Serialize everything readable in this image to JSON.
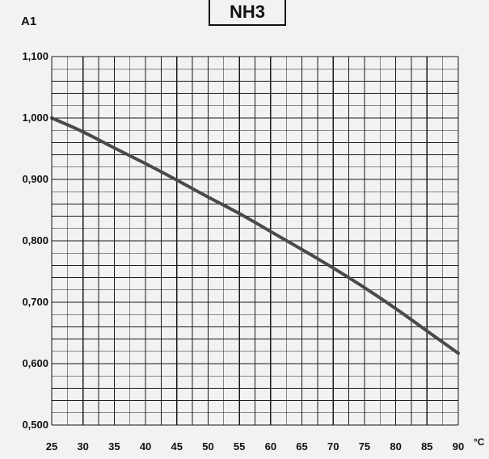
{
  "chart_data": {
    "type": "line",
    "title": "NH3",
    "ylabel": "A1",
    "xlabel_unit": "°C",
    "x": [
      25,
      30,
      35,
      40,
      45,
      50,
      55,
      60,
      65,
      70,
      75,
      80,
      85,
      90
    ],
    "series": [
      {
        "values": [
          1.0,
          0.978,
          0.951,
          0.926,
          0.899,
          0.871,
          0.845,
          0.815,
          0.786,
          0.756,
          0.724,
          0.69,
          0.653,
          0.617
        ]
      }
    ],
    "xlim": [
      25,
      90
    ],
    "ylim": [
      0.5,
      1.1
    ],
    "x_ticks": [
      "25",
      "30",
      "35",
      "40",
      "45",
      "50",
      "55",
      "60",
      "65",
      "70",
      "75",
      "80",
      "85",
      "90"
    ],
    "y_ticks": [
      "0,500",
      "0,600",
      "0,700",
      "0,800",
      "0,900",
      "1,000",
      "1,100"
    ],
    "grid": true,
    "line_color": "#4a4a4a",
    "grid_color": "#1a1a1a"
  }
}
